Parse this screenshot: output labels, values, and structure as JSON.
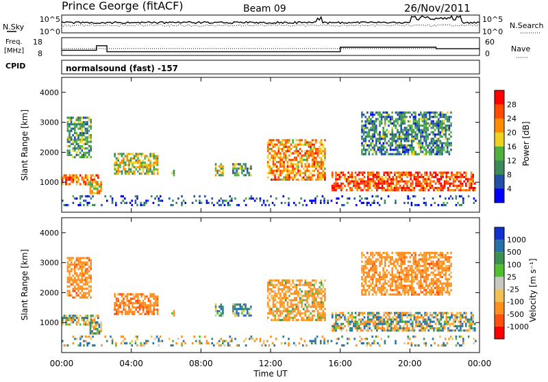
{
  "header": {
    "station": "Prince George (fitACF)",
    "beam": "Beam 09",
    "date": "26/Nov/2011"
  },
  "top_panel": {
    "left_label": "N.Sky",
    "right_label": "N.Search",
    "left_ticks": [
      "10^5",
      "10^0"
    ],
    "right_ticks": [
      "10^5",
      "10^0"
    ]
  },
  "freq_panel": {
    "left_label_1": "Freq.",
    "left_label_2": "[MHz]",
    "right_label": "Nave",
    "left_ticks": [
      "18",
      "8"
    ],
    "right_ticks": [
      "60",
      "0"
    ]
  },
  "cpid": {
    "label": "CPID",
    "mode": "normalsound (fast) -157"
  },
  "power_panel": {
    "ylabel": "Slant Range [km]",
    "yticks": [
      "1000",
      "2000",
      "3000",
      "4000"
    ],
    "colorbar_label": "Power [dB]",
    "colorbar_ticks": [
      "4",
      "8",
      "12",
      "16",
      "20",
      "24",
      "28"
    ],
    "colors": [
      "#0000ff",
      "#2050a8",
      "#3c8a5a",
      "#50b040",
      "#f0d020",
      "#ff8c00",
      "#ff4a00",
      "#ff0000"
    ]
  },
  "velocity_panel": {
    "ylabel": "Slant Range [km]",
    "yticks": [
      "1000",
      "2000",
      "3000",
      "4000"
    ],
    "colorbar_label": "Velocity [m s⁻¹]",
    "colorbar_ticks": [
      "1000",
      "500",
      "100",
      "25",
      "-25",
      "-100",
      "-500",
      "-1000"
    ],
    "colors": [
      "#1030d0",
      "#2870a8",
      "#3c9050",
      "#50c030",
      "#c8c8c0",
      "#f0c050",
      "#ff9020",
      "#ff5010",
      "#ff0000"
    ]
  },
  "time_axis": {
    "xlabel": "Time UT",
    "ticks": [
      "00:00",
      "04:00",
      "08:00",
      "12:00",
      "16:00",
      "20:00",
      "00:00"
    ]
  },
  "chart_data": {
    "type": "heatmap",
    "title": "Prince George (fitACF) Beam 09 26/Nov/2011",
    "xlabel": "Time UT",
    "ylabel": "Slant Range [km]",
    "xlim": [
      0,
      24
    ],
    "ylim": [
      0,
      4500
    ],
    "series": [
      {
        "name": "Power [dB]",
        "clim": [
          0,
          32
        ]
      },
      {
        "name": "Velocity [m s⁻¹]",
        "clim": [
          -1000,
          1000
        ]
      }
    ],
    "scatter_regions": [
      {
        "t0": 0.0,
        "t1": 2.2,
        "r0": 900,
        "r1": 1300,
        "power": 24,
        "velocity": 0
      },
      {
        "t0": 0.3,
        "t1": 1.8,
        "r0": 1800,
        "r1": 3200,
        "power": 12,
        "velocity": -300
      },
      {
        "t0": 1.5,
        "t1": 2.4,
        "r0": 600,
        "r1": 1100,
        "power": 18,
        "velocity": 0
      },
      {
        "t0": 3.0,
        "t1": 5.6,
        "r0": 1250,
        "r1": 2000,
        "power": 16,
        "velocity": -400
      },
      {
        "t0": 6.3,
        "t1": 6.6,
        "r0": 1200,
        "r1": 1450,
        "power": 14,
        "velocity": -200
      },
      {
        "t0": 8.8,
        "t1": 9.4,
        "r0": 1200,
        "r1": 1700,
        "power": 16,
        "velocity": 150
      },
      {
        "t0": 9.8,
        "t1": 11.0,
        "r0": 1200,
        "r1": 1700,
        "power": 12,
        "velocity": 150
      },
      {
        "t0": 11.8,
        "t1": 15.2,
        "r0": 1050,
        "r1": 2500,
        "power": 22,
        "velocity": -200
      },
      {
        "t0": 15.5,
        "t1": 23.8,
        "r0": 700,
        "r1": 1400,
        "power": 26,
        "velocity": 0
      },
      {
        "t0": 17.2,
        "t1": 22.5,
        "r0": 1900,
        "r1": 3400,
        "power": 10,
        "velocity": -300
      },
      {
        "t0": 0.0,
        "t1": 24.0,
        "r0": 200,
        "r1": 600,
        "power": 6,
        "velocity": 0
      }
    ],
    "frequency_mhz": [
      {
        "t0": 0.0,
        "t1": 2.0,
        "value": 11
      },
      {
        "t0": 2.0,
        "t1": 2.6,
        "value": 14
      },
      {
        "t0": 2.6,
        "t1": 16.0,
        "value": 10
      },
      {
        "t0": 16.0,
        "t1": 21.5,
        "value": 13
      },
      {
        "t0": 21.5,
        "t1": 24.0,
        "value": 12
      }
    ]
  }
}
